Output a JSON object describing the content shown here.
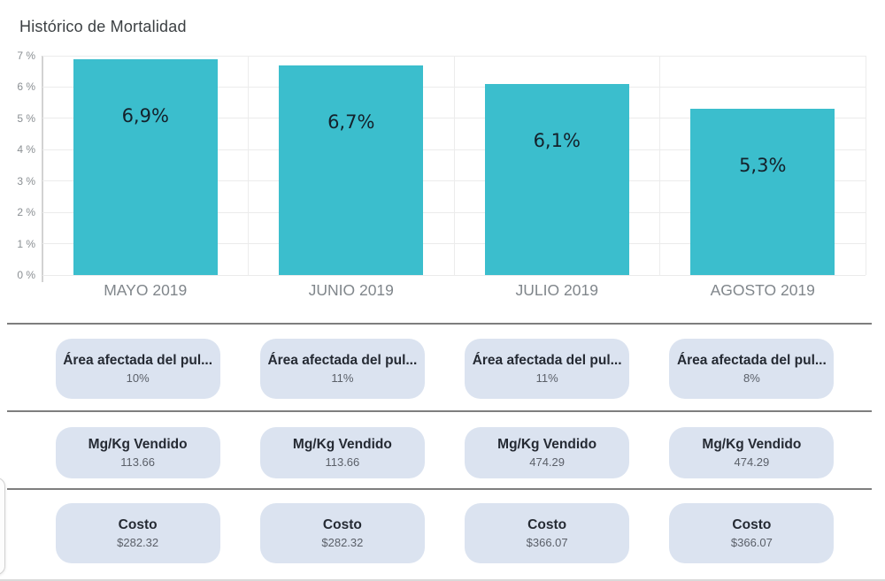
{
  "title": "Histórico de Mortalidad",
  "chart_data": {
    "type": "bar",
    "title": "Histórico de Mortalidad",
    "categories": [
      "MAYO 2019",
      "JUNIO 2019",
      "JULIO 2019",
      "AGOSTO 2019"
    ],
    "values": [
      6.9,
      6.7,
      6.1,
      5.3
    ],
    "bar_labels": [
      "6,9%",
      "6,7%",
      "6,1%",
      "5,3%"
    ],
    "xlabel": "",
    "ylabel": "",
    "ylim": [
      0,
      7
    ],
    "y_ticks": [
      "7 %",
      "6 %",
      "5 %",
      "4 %",
      "3 %",
      "2 %",
      "1 %",
      "0 %"
    ],
    "grid": true,
    "legend": "none",
    "bar_color": "#3bbecd"
  },
  "metric_rows": [
    {
      "label": "Área afectada del pul...",
      "values": [
        "10%",
        "11%",
        "11%",
        "8%"
      ]
    },
    {
      "label": "Mg/Kg Vendido",
      "values": [
        "113.66",
        "113.66",
        "474.29",
        "474.29"
      ]
    },
    {
      "label": "Costo",
      "values": [
        "$282.32",
        "$282.32",
        "$366.07",
        "$366.07"
      ]
    }
  ],
  "colors": {
    "bar": "#3bbecd",
    "bar_label_text": "#14212b",
    "title_text": "#3c4043",
    "axis_text": "#8a8f93",
    "x_label_text": "#80868b",
    "gridline": "#ebebeb",
    "divider": "#7e7e7e",
    "pill_background": "#dbe3f0",
    "pill_label_text": "#252a33",
    "pill_value_text": "#5b6069"
  }
}
